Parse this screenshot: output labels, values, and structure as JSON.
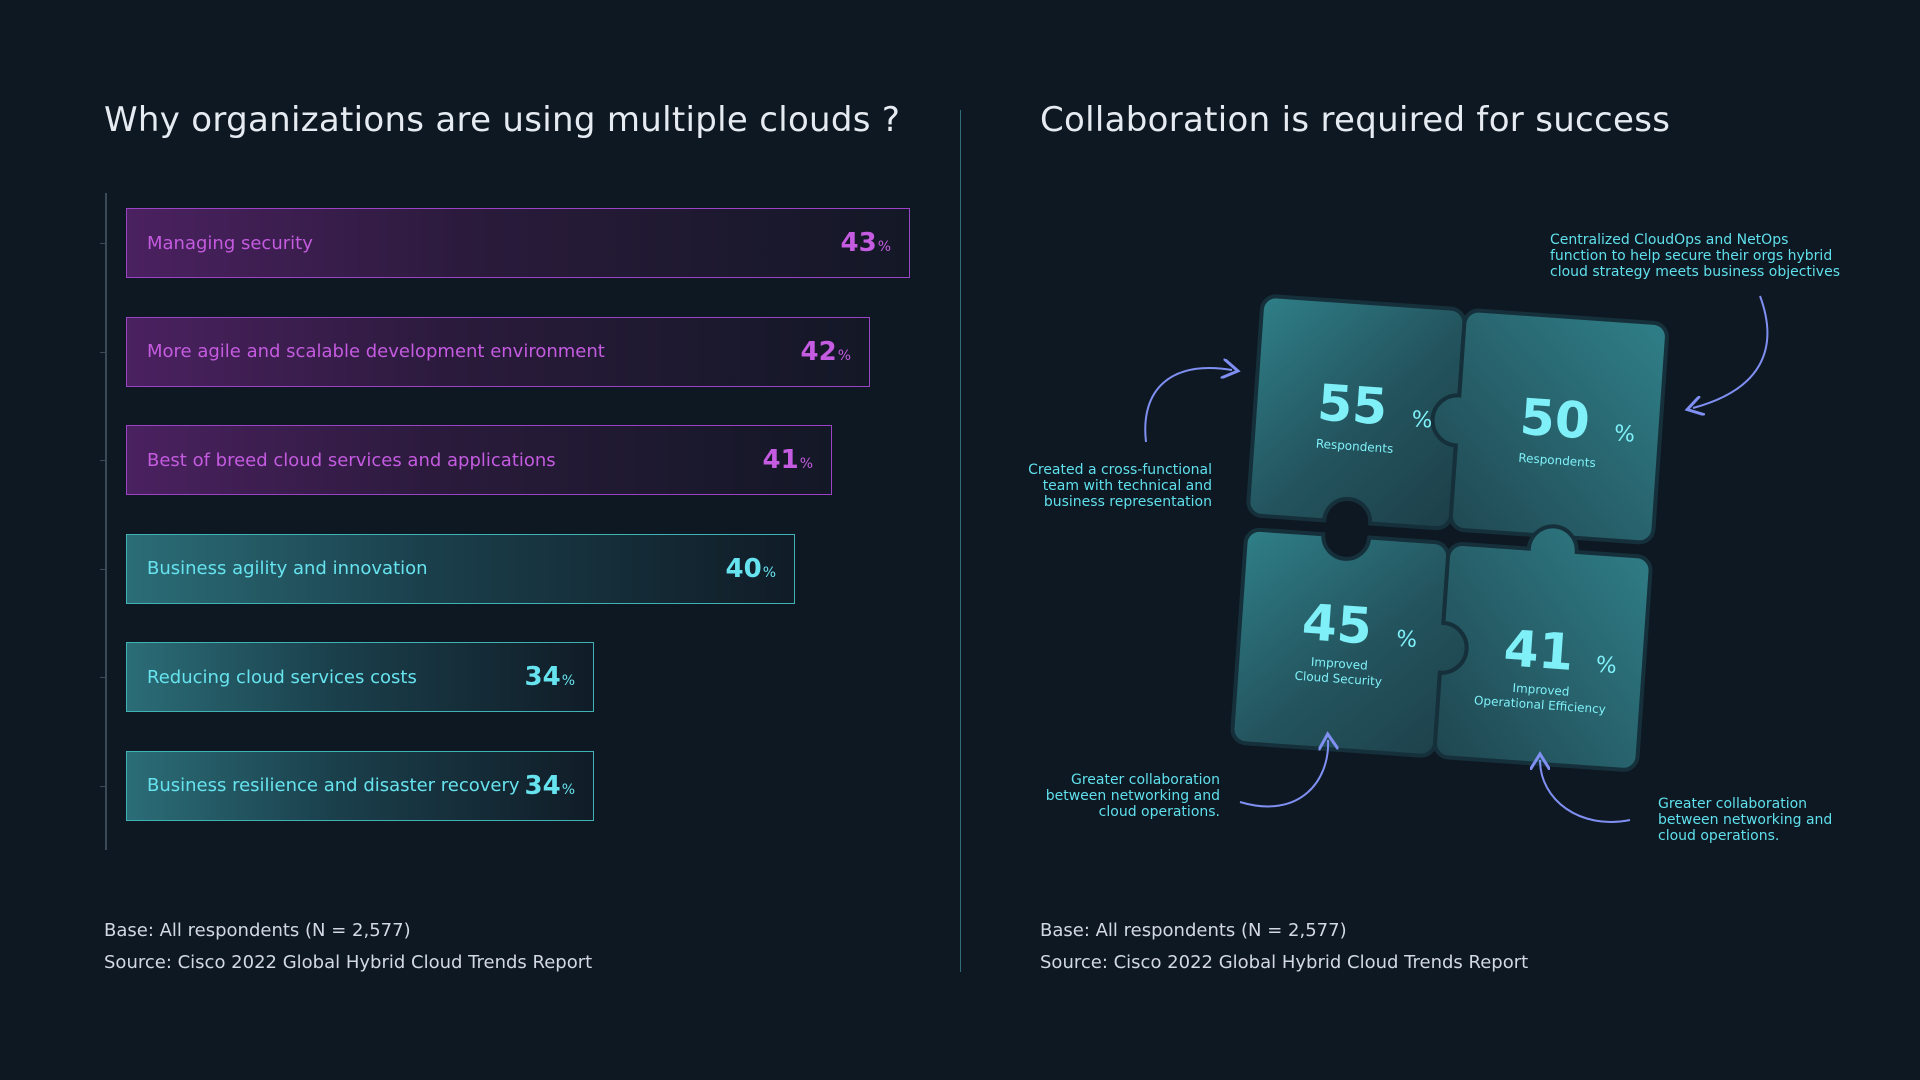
{
  "left_panel": {
    "title": "Why organizations are using multiple clouds ?",
    "base": "Base: All respondents (N = 2,577)",
    "source": "Source: Cisco 2022 Global Hybrid Cloud Trends Report"
  },
  "right_panel": {
    "title": "Collaboration is required for success",
    "base": "Base: All respondents (N = 2,577)",
    "source": "Source: Cisco 2022 Global Hybrid Cloud Trends Report",
    "pieces": [
      {
        "value": "55",
        "unit": "%",
        "label": "Respondents"
      },
      {
        "value": "50",
        "unit": "%",
        "label": "Respondents"
      },
      {
        "value": "45",
        "unit": "%",
        "label_line1": "Improved",
        "label_line2": "Cloud Security"
      },
      {
        "value": "41",
        "unit": "%",
        "label_line1": "Improved",
        "label_line2": "Operational Efficiency"
      }
    ],
    "notes": {
      "top_right": "Centralized CloudOps and NetOps\nfunction to help secure their orgs hybrid\ncloud strategy meets business objectives",
      "mid_left": "Created a cross-functional\nteam with technical and\nbusiness representation",
      "bottom_left": "Greater collaboration\nbetween networking and\ncloud operations.",
      "bottom_right": "Greater collaboration\nbetween networking and\ncloud operations."
    }
  },
  "colors": {
    "purple": "#c45be0",
    "teal": "#66e3ee",
    "background": "#0e1822"
  },
  "chart_data": {
    "type": "bar",
    "orientation": "horizontal",
    "categories": [
      "Managing security",
      "More agile and scalable development environment",
      "Best of breed cloud services and applications",
      "Business agility and innovation",
      "Reducing cloud services costs",
      "Business resilience and disaster recovery"
    ],
    "values": [
      43,
      42,
      41,
      40,
      34,
      34
    ],
    "unit": "%",
    "bar_colors": [
      "purple",
      "purple",
      "purple",
      "teal",
      "teal",
      "teal"
    ],
    "title": "Why organizations are using multiple clouds ?",
    "grid": false
  }
}
